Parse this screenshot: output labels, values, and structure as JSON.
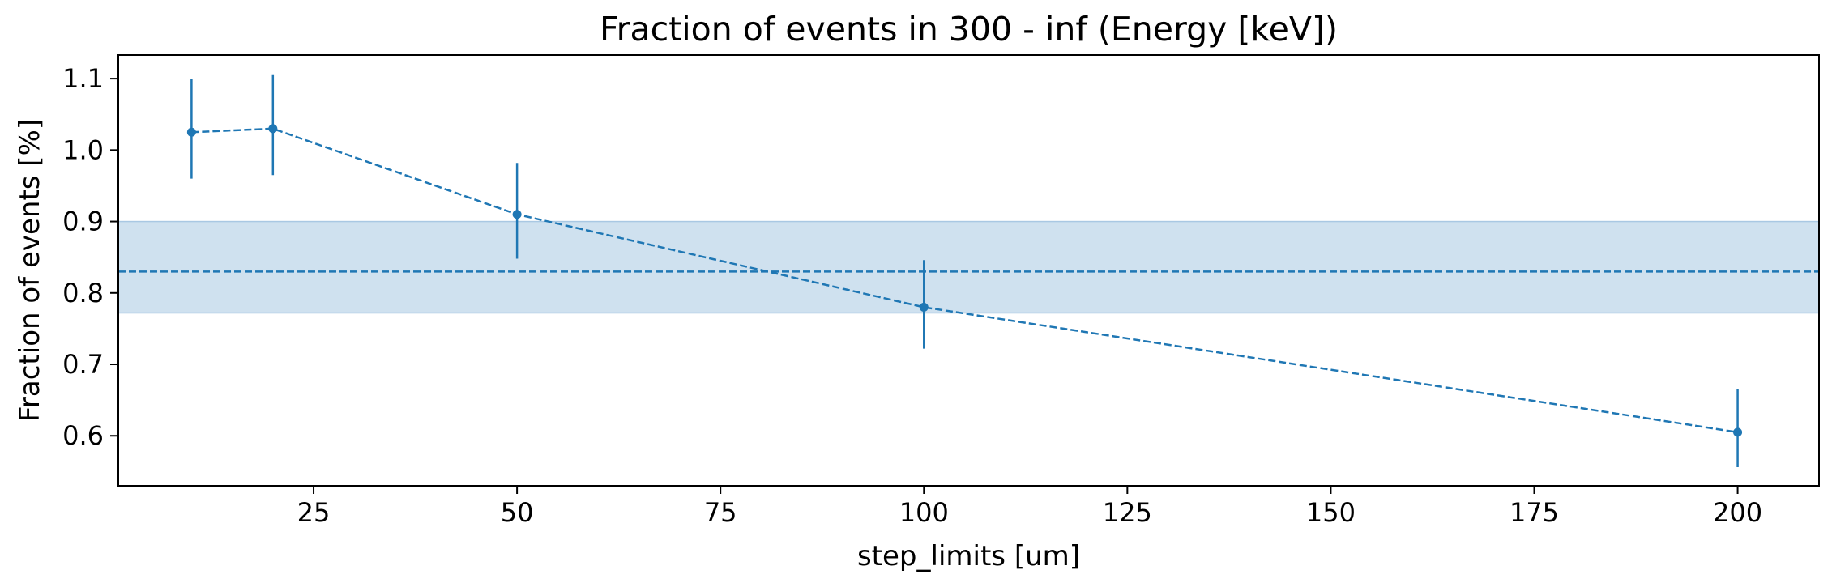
{
  "chart_data": {
    "type": "line",
    "title": "Fraction of events in 300 - inf (Energy [keV])",
    "xlabel": "step_limits [um]",
    "ylabel": "Fraction of events [%]",
    "xlim": [
      1,
      210
    ],
    "ylim": [
      0.53,
      1.133
    ],
    "x_ticks": [
      25,
      50,
      75,
      100,
      125,
      150,
      175,
      200
    ],
    "x_tick_labels": [
      "25",
      "50",
      "75",
      "100",
      "125",
      "150",
      "175",
      "200"
    ],
    "y_ticks": [
      0.6,
      0.7,
      0.8,
      0.9,
      1.0,
      1.1
    ],
    "y_tick_labels": [
      "0.6",
      "0.7",
      "0.8",
      "0.9",
      "1.0",
      "1.1"
    ],
    "grid": false,
    "series": [
      {
        "x": [
          10,
          20,
          50,
          100,
          200
        ],
        "y": [
          1.025,
          1.03,
          0.91,
          0.78,
          0.605
        ],
        "yerr_low": [
          0.96,
          0.965,
          0.848,
          0.722,
          0.556
        ],
        "yerr_high": [
          1.1,
          1.105,
          0.982,
          0.846,
          0.665
        ],
        "line_style": "dashed",
        "marker": "circle",
        "color": "#1f77b4"
      }
    ],
    "reference": {
      "mean": 0.83,
      "band_low": 0.772,
      "band_high": 0.9,
      "line_style": "dashed",
      "color": "#1f77b4",
      "band_color": "#cfe1ef"
    }
  }
}
